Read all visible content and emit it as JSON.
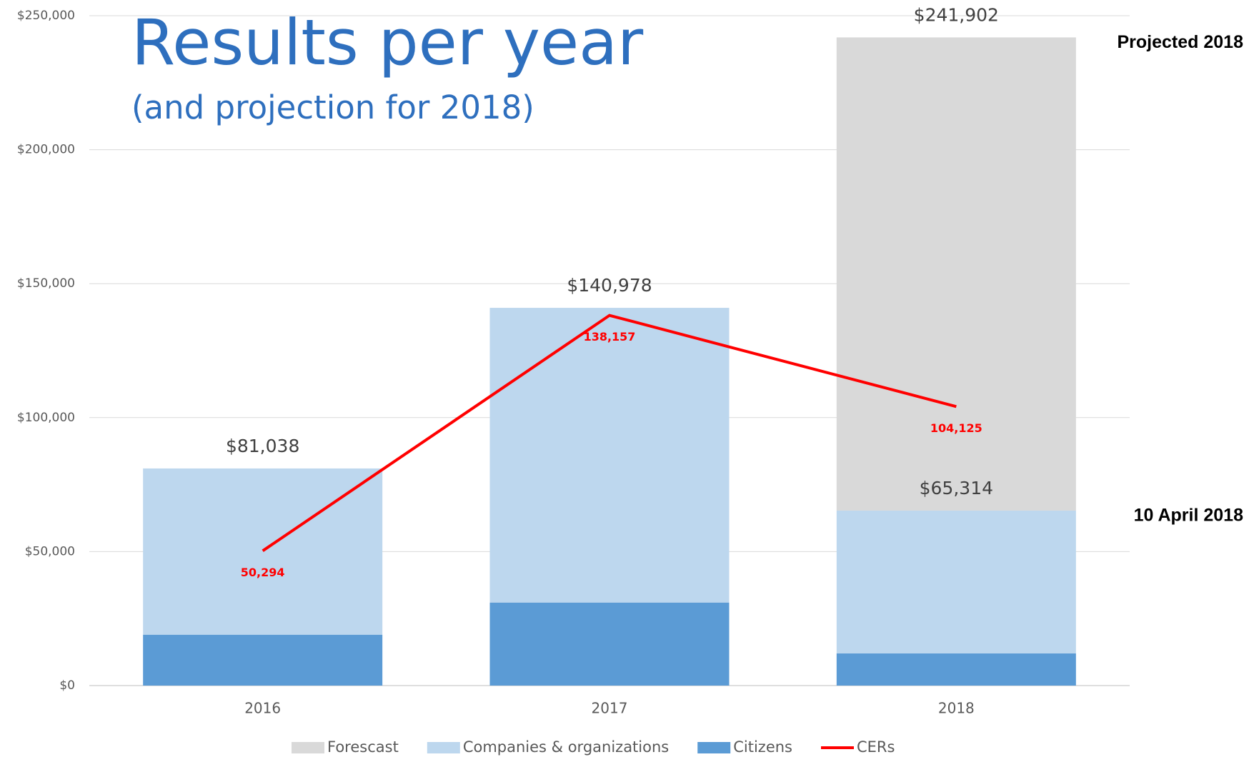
{
  "chart_data": {
    "type": "bar",
    "stacked": true,
    "title": "Results per year",
    "subtitle": "(and projection for 2018)",
    "categories": [
      "2016",
      "2017",
      "2018"
    ],
    "series": [
      {
        "name": "Forescast",
        "color": "#d9d9d9",
        "values": [
          null,
          null,
          176588
        ]
      },
      {
        "name": "Companies & organizations",
        "color": "#bdd7ee",
        "values": [
          62038,
          109978,
          53314
        ]
      },
      {
        "name": "Citizens",
        "color": "#5b9bd5",
        "values": [
          19000,
          31000,
          12000
        ]
      },
      {
        "name": "CERs",
        "type": "line",
        "color": "#ff0000",
        "values": [
          50294,
          138157,
          104125
        ],
        "value_labels": [
          "50,294",
          "138,157",
          "104,125"
        ]
      }
    ],
    "stack_order": [
      "Citizens",
      "Companies & organizations",
      "Forescast"
    ],
    "annotations": [
      {
        "label": "$81,038",
        "value": 81038,
        "category": "2016"
      },
      {
        "label": "$140,978",
        "value": 140978,
        "category": "2017"
      },
      {
        "label": "$65,314",
        "value": 65314,
        "category": "2018",
        "note": "10 April 2018"
      },
      {
        "label": "$241,902",
        "value": 241902,
        "category": "2018",
        "note": "Projected 2018"
      }
    ],
    "ylim": [
      0,
      250000
    ],
    "yticks": [
      {
        "value": 0,
        "label": "$0"
      },
      {
        "value": 50000,
        "label": "$50,000"
      },
      {
        "value": 100000,
        "label": "$100,000"
      },
      {
        "value": 150000,
        "label": "$150,000"
      },
      {
        "value": 200000,
        "label": "$200,000"
      },
      {
        "value": 250000,
        "label": "$250,000"
      }
    ],
    "grid": true,
    "legend": "bottom"
  }
}
